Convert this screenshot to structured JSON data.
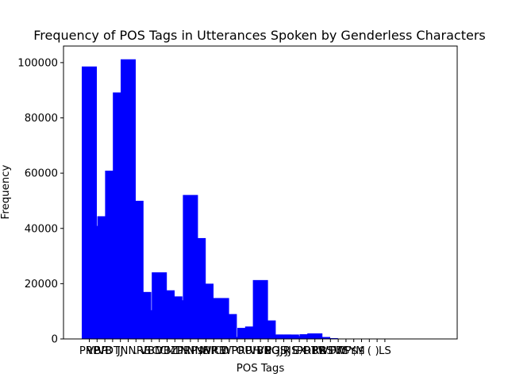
{
  "chart_data": {
    "type": "bar",
    "title": "Frequency of POS Tags in Utterances Spoken by Genderless Characters",
    "xlabel": "POS Tags",
    "ylabel": "Frequency",
    "ylim": [
      0,
      106000
    ],
    "yticks": [
      0,
      20000,
      40000,
      60000,
      80000,
      100000
    ],
    "ytick_labels": [
      "0",
      "20000",
      "40000",
      "60000",
      "80000",
      "100000"
    ],
    "bar_color": "#0000ff",
    "grid": false,
    "legend": "none",
    "categories": [
      "PRP",
      "VBP",
      "VB",
      "DT",
      "JJ",
      "NN",
      ".",
      "RB",
      "VBD",
      "CC",
      "VBZ",
      "MD",
      "IN",
      "PRP$",
      "NNS",
      "NNP",
      "WRB",
      "CD",
      "WP",
      "TO",
      "RP",
      "UH",
      "VBN",
      "VBG",
      "POS",
      "JJR",
      "JJS",
      "EX",
      "PDT",
      "RBR",
      "RBS",
      "WDT",
      "FW",
      "WP$",
      "SYM",
      "$",
      "(",
      ")",
      "LS"
    ],
    "values": [
      98600,
      40900,
      44400,
      60900,
      89200,
      101200,
      50000,
      17000,
      10400,
      24100,
      17600,
      15400,
      14000,
      52100,
      36500,
      20000,
      14800,
      14800,
      9000,
      700,
      4000,
      4500,
      21300,
      6700,
      1600,
      1600,
      1600,
      1000,
      1700,
      2000,
      700,
      300,
      100,
      100,
      100,
      100,
      100,
      100,
      100
    ]
  }
}
